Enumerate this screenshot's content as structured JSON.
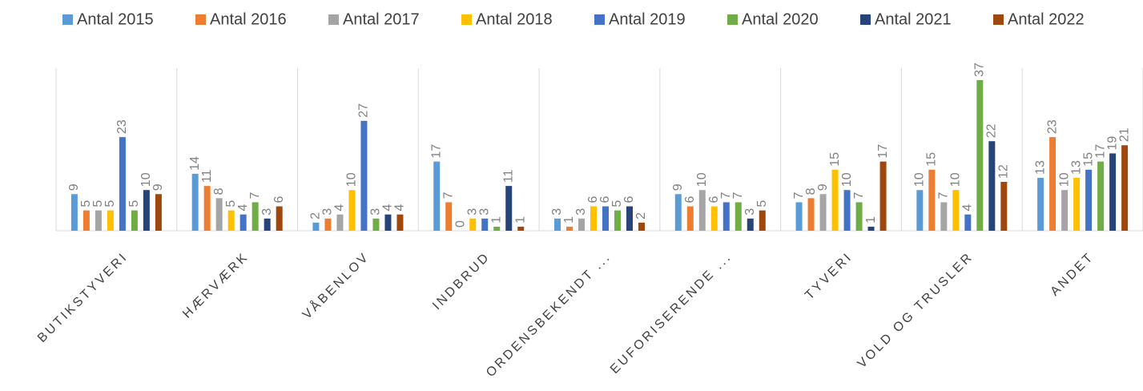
{
  "chart_data": {
    "type": "bar",
    "categories": [
      "BUTIKSTYVERI",
      "HÆRVÆRK",
      "VÅBENLOV",
      "INDBRUD",
      "ORDENSBEKENDT ...",
      "EUFORISERENDE ...",
      "TYVERI",
      "VOLD OG TRUSLER",
      "ANDET"
    ],
    "series": [
      {
        "name": "Antal 2015",
        "color": "#5b9bd5",
        "values": [
          9,
          14,
          2,
          17,
          3,
          9,
          7,
          10,
          13
        ]
      },
      {
        "name": "Antal 2016",
        "color": "#ed7d31",
        "values": [
          5,
          11,
          3,
          7,
          1,
          6,
          8,
          15,
          23
        ]
      },
      {
        "name": "Antal 2017",
        "color": "#a5a5a5",
        "values": [
          5,
          8,
          4,
          0,
          3,
          10,
          9,
          7,
          10
        ]
      },
      {
        "name": "Antal 2018",
        "color": "#ffc000",
        "values": [
          5,
          5,
          10,
          3,
          6,
          6,
          15,
          10,
          13
        ]
      },
      {
        "name": "Antal 2019",
        "color": "#4472c4",
        "values": [
          23,
          4,
          27,
          3,
          6,
          7,
          10,
          4,
          15
        ]
      },
      {
        "name": "Antal 2020",
        "color": "#70ad47",
        "values": [
          5,
          7,
          3,
          1,
          5,
          7,
          7,
          37,
          17
        ]
      },
      {
        "name": "Antal 2021",
        "color": "#264478",
        "values": [
          10,
          3,
          4,
          11,
          6,
          3,
          1,
          22,
          19
        ]
      },
      {
        "name": "Antal 2022",
        "color": "#9e480e",
        "values": [
          9,
          6,
          4,
          1,
          2,
          5,
          17,
          12,
          21
        ]
      }
    ],
    "legend": "top"
  }
}
